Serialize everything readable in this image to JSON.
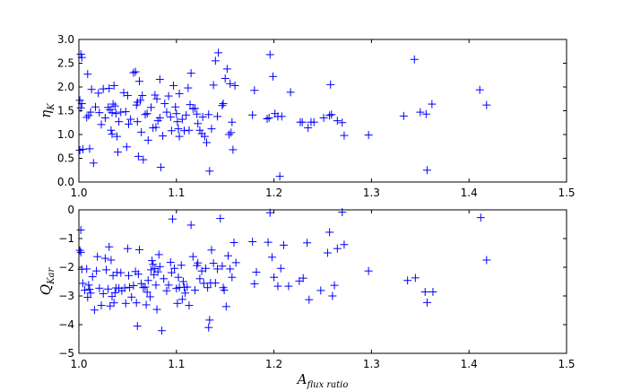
{
  "chart_data": [
    {
      "type": "scatter",
      "marker": "plus",
      "color": "#0000ff",
      "xlim": [
        1.0,
        1.5
      ],
      "ylim": [
        0.0,
        3.0
      ],
      "xticks": [
        "1.0",
        "1.1",
        "1.2",
        "1.3",
        "1.4",
        "1.5"
      ],
      "yticks": [
        "0.0",
        "0.5",
        "1.0",
        "1.5",
        "2.0",
        "2.5",
        "3.0"
      ],
      "ylabel": {
        "main": "η",
        "sub": "K"
      },
      "xlabel": null,
      "points": [
        [
          1.002,
          2.69
        ],
        [
          1.003,
          2.62
        ],
        [
          1.001,
          1.72
        ],
        [
          1.003,
          1.65
        ],
        [
          1.002,
          1.56
        ],
        [
          1.001,
          0.67
        ],
        [
          1.004,
          0.69
        ],
        [
          1.011,
          0.7
        ],
        [
          1.008,
          1.36
        ],
        [
          1.01,
          1.4
        ],
        [
          1.012,
          1.47
        ],
        [
          1.013,
          1.95
        ],
        [
          1.009,
          2.27
        ],
        [
          1.015,
          0.4
        ],
        [
          1.017,
          1.58
        ],
        [
          1.02,
          1.87
        ],
        [
          1.021,
          1.46
        ],
        [
          1.023,
          1.21
        ],
        [
          1.025,
          1.96
        ],
        [
          1.027,
          1.35
        ],
        [
          1.03,
          1.57
        ],
        [
          1.031,
          1.97
        ],
        [
          1.032,
          1.52
        ],
        [
          1.033,
          1.09
        ],
        [
          1.034,
          1.46
        ],
        [
          1.034,
          1.01
        ],
        [
          1.035,
          1.64
        ],
        [
          1.036,
          2.03
        ],
        [
          1.037,
          1.6
        ],
        [
          1.038,
          1.44
        ],
        [
          1.039,
          0.96
        ],
        [
          1.04,
          0.63
        ],
        [
          1.041,
          1.27
        ],
        [
          1.043,
          1.47
        ],
        [
          1.046,
          1.88
        ],
        [
          1.048,
          1.48
        ],
        [
          1.049,
          0.74
        ],
        [
          1.05,
          1.82
        ],
        [
          1.051,
          1.22
        ],
        [
          1.053,
          1.32
        ],
        [
          1.056,
          2.3
        ],
        [
          1.058,
          2.32
        ],
        [
          1.059,
          1.62
        ],
        [
          1.06,
          1.68
        ],
        [
          1.06,
          1.27
        ],
        [
          1.061,
          0.54
        ],
        [
          1.062,
          2.12
        ],
        [
          1.063,
          1.72
        ],
        [
          1.064,
          1.05
        ],
        [
          1.065,
          1.82
        ],
        [
          1.066,
          0.47
        ],
        [
          1.068,
          1.42
        ],
        [
          1.07,
          1.44
        ],
        [
          1.071,
          0.88
        ],
        [
          1.074,
          1.57
        ],
        [
          1.076,
          1.14
        ],
        [
          1.078,
          1.83
        ],
        [
          1.079,
          1.15
        ],
        [
          1.08,
          1.75
        ],
        [
          1.081,
          1.29
        ],
        [
          1.083,
          1.35
        ],
        [
          1.083,
          2.16
        ],
        [
          1.084,
          0.31
        ],
        [
          1.086,
          0.97
        ],
        [
          1.088,
          1.65
        ],
        [
          1.09,
          1.47
        ],
        [
          1.092,
          1.81
        ],
        [
          1.094,
          1.37
        ],
        [
          1.095,
          1.08
        ],
        [
          1.097,
          2.03
        ],
        [
          1.099,
          1.58
        ],
        [
          1.1,
          1.44
        ],
        [
          1.101,
          1.27
        ],
        [
          1.102,
          1.12
        ],
        [
          1.103,
          1.86
        ],
        [
          1.103,
          0.96
        ],
        [
          1.106,
          1.32
        ],
        [
          1.108,
          1.08
        ],
        [
          1.11,
          1.41
        ],
        [
          1.112,
          1.98
        ],
        [
          1.113,
          1.09
        ],
        [
          1.114,
          1.63
        ],
        [
          1.115,
          2.29
        ],
        [
          1.117,
          1.54
        ],
        [
          1.119,
          1.55
        ],
        [
          1.121,
          1.43
        ],
        [
          1.122,
          1.23
        ],
        [
          1.124,
          1.09
        ],
        [
          1.126,
          1.02
        ],
        [
          1.127,
          1.37
        ],
        [
          1.129,
          0.96
        ],
        [
          1.131,
          0.83
        ],
        [
          1.133,
          1.42
        ],
        [
          1.134,
          0.23
        ],
        [
          1.136,
          1.12
        ],
        [
          1.138,
          2.04
        ],
        [
          1.14,
          2.55
        ],
        [
          1.142,
          1.38
        ],
        [
          1.143,
          2.72
        ],
        [
          1.147,
          1.61
        ],
        [
          1.148,
          1.65
        ],
        [
          1.15,
          2.18
        ],
        [
          1.152,
          2.38
        ],
        [
          1.154,
          1.0
        ],
        [
          1.155,
          2.07
        ],
        [
          1.156,
          1.04
        ],
        [
          1.157,
          1.26
        ],
        [
          1.158,
          0.68
        ],
        [
          1.16,
          2.03
        ],
        [
          1.178,
          1.41
        ],
        [
          1.18,
          1.93
        ],
        [
          1.193,
          1.33
        ],
        [
          1.195,
          1.35
        ],
        [
          1.196,
          2.68
        ],
        [
          1.199,
          2.22
        ],
        [
          1.201,
          1.44
        ],
        [
          1.204,
          1.38
        ],
        [
          1.206,
          0.12
        ],
        [
          1.208,
          1.38
        ],
        [
          1.217,
          1.89
        ],
        [
          1.227,
          1.26
        ],
        [
          1.229,
          1.26
        ],
        [
          1.235,
          1.14
        ],
        [
          1.238,
          1.26
        ],
        [
          1.241,
          1.26
        ],
        [
          1.251,
          1.35
        ],
        [
          1.257,
          1.4
        ],
        [
          1.258,
          2.05
        ],
        [
          1.259,
          1.42
        ],
        [
          1.265,
          1.29
        ],
        [
          1.27,
          1.25
        ],
        [
          1.272,
          0.98
        ],
        [
          1.297,
          0.99
        ],
        [
          1.333,
          1.39
        ],
        [
          1.344,
          2.58
        ],
        [
          1.35,
          1.47
        ],
        [
          1.356,
          1.43
        ],
        [
          1.357,
          0.25
        ],
        [
          1.362,
          1.64
        ],
        [
          1.411,
          1.94
        ],
        [
          1.418,
          1.62
        ]
      ]
    },
    {
      "type": "scatter",
      "marker": "plus",
      "color": "#0000ff",
      "xlim": [
        1.0,
        1.5
      ],
      "ylim": [
        -5,
        0
      ],
      "xticks": [
        "1.0",
        "1.1",
        "1.2",
        "1.3",
        "1.4",
        "1.5"
      ],
      "yticks": [
        "0",
        "−1",
        "−2",
        "−3",
        "−4",
        "−5"
      ],
      "ylabel": {
        "main": "Q",
        "sub": "Kar"
      },
      "xlabel": {
        "main": "A",
        "sub": "flux ratio"
      },
      "points": [
        [
          1.002,
          -0.7
        ],
        [
          1.001,
          -1.41
        ],
        [
          1.002,
          -1.48
        ],
        [
          1.003,
          -2.07
        ],
        [
          1.004,
          -2.56
        ],
        [
          1.006,
          -2.8
        ],
        [
          1.008,
          -2.06
        ],
        [
          1.009,
          -3.05
        ],
        [
          1.01,
          -2.62
        ],
        [
          1.011,
          -2.77
        ],
        [
          1.012,
          -2.9
        ],
        [
          1.014,
          -2.33
        ],
        [
          1.016,
          -3.49
        ],
        [
          1.018,
          -2.13
        ],
        [
          1.019,
          -1.63
        ],
        [
          1.021,
          -2.73
        ],
        [
          1.023,
          -3.33
        ],
        [
          1.025,
          -2.92
        ],
        [
          1.027,
          -1.69
        ],
        [
          1.028,
          -2.09
        ],
        [
          1.03,
          -2.76
        ],
        [
          1.031,
          -1.29
        ],
        [
          1.032,
          -3.35
        ],
        [
          1.033,
          -1.75
        ],
        [
          1.034,
          -3.02
        ],
        [
          1.035,
          -2.29
        ],
        [
          1.036,
          -3.24
        ],
        [
          1.037,
          -2.89
        ],
        [
          1.038,
          -2.72
        ],
        [
          1.039,
          -2.18
        ],
        [
          1.041,
          -2.73
        ],
        [
          1.043,
          -2.19
        ],
        [
          1.044,
          -2.82
        ],
        [
          1.047,
          -2.72
        ],
        [
          1.048,
          -3.26
        ],
        [
          1.05,
          -1.35
        ],
        [
          1.051,
          -2.29
        ],
        [
          1.052,
          -2.7
        ],
        [
          1.054,
          -3.04
        ],
        [
          1.056,
          -2.64
        ],
        [
          1.058,
          -2.15
        ],
        [
          1.059,
          -3.24
        ],
        [
          1.06,
          -4.05
        ],
        [
          1.061,
          -2.24
        ],
        [
          1.062,
          -1.39
        ],
        [
          1.064,
          -2.57
        ],
        [
          1.066,
          -2.71
        ],
        [
          1.068,
          -2.69
        ],
        [
          1.069,
          -3.31
        ],
        [
          1.07,
          -2.87
        ],
        [
          1.071,
          -2.46
        ],
        [
          1.073,
          -3.03
        ],
        [
          1.074,
          -2.09
        ],
        [
          1.075,
          -1.77
        ],
        [
          1.076,
          -1.9
        ],
        [
          1.077,
          -2.26
        ],
        [
          1.078,
          -2.05
        ],
        [
          1.079,
          -2.62
        ],
        [
          1.08,
          -3.47
        ],
        [
          1.081,
          -2.16
        ],
        [
          1.082,
          -1.56
        ],
        [
          1.083,
          -1.98
        ],
        [
          1.085,
          -4.21
        ],
        [
          1.087,
          -2.4
        ],
        [
          1.09,
          -2.82
        ],
        [
          1.092,
          -2.62
        ],
        [
          1.094,
          -1.83
        ],
        [
          1.095,
          -2.19
        ],
        [
          1.096,
          -0.32
        ],
        [
          1.098,
          -2.04
        ],
        [
          1.1,
          -2.74
        ],
        [
          1.101,
          -3.26
        ],
        [
          1.102,
          -2.35
        ],
        [
          1.103,
          -2.7
        ],
        [
          1.105,
          -1.93
        ],
        [
          1.106,
          -3.12
        ],
        [
          1.107,
          -2.5
        ],
        [
          1.108,
          -2.7
        ],
        [
          1.109,
          -2.9
        ],
        [
          1.111,
          -2.69
        ],
        [
          1.113,
          -3.33
        ],
        [
          1.115,
          -0.53
        ],
        [
          1.117,
          -1.63
        ],
        [
          1.119,
          -2.8
        ],
        [
          1.121,
          -1.94
        ],
        [
          1.122,
          -1.85
        ],
        [
          1.124,
          -2.4
        ],
        [
          1.126,
          -2.13
        ],
        [
          1.128,
          -2.56
        ],
        [
          1.13,
          -2.04
        ],
        [
          1.132,
          -2.71
        ],
        [
          1.133,
          -4.1
        ],
        [
          1.134,
          -3.84
        ],
        [
          1.135,
          -2.55
        ],
        [
          1.136,
          -1.4
        ],
        [
          1.138,
          -1.86
        ],
        [
          1.14,
          -2.55
        ],
        [
          1.142,
          -2.06
        ],
        [
          1.145,
          -0.3
        ],
        [
          1.147,
          -1.96
        ],
        [
          1.148,
          -2.71
        ],
        [
          1.149,
          -2.8
        ],
        [
          1.151,
          -3.37
        ],
        [
          1.153,
          -1.6
        ],
        [
          1.155,
          -2.06
        ],
        [
          1.157,
          -2.35
        ],
        [
          1.159,
          -1.14
        ],
        [
          1.161,
          -1.84
        ],
        [
          1.178,
          -1.11
        ],
        [
          1.18,
          -2.58
        ],
        [
          1.182,
          -2.17
        ],
        [
          1.194,
          -1.13
        ],
        [
          1.196,
          -0.1
        ],
        [
          1.198,
          -1.65
        ],
        [
          1.2,
          -2.35
        ],
        [
          1.204,
          -2.66
        ],
        [
          1.207,
          -2.04
        ],
        [
          1.21,
          -1.23
        ],
        [
          1.215,
          -2.66
        ],
        [
          1.226,
          -2.48
        ],
        [
          1.23,
          -2.38
        ],
        [
          1.234,
          -1.15
        ],
        [
          1.236,
          -3.13
        ],
        [
          1.248,
          -2.81
        ],
        [
          1.255,
          -1.5
        ],
        [
          1.257,
          -0.78
        ],
        [
          1.26,
          -3.0
        ],
        [
          1.262,
          -2.63
        ],
        [
          1.265,
          -1.35
        ],
        [
          1.27,
          -0.08
        ],
        [
          1.272,
          -1.21
        ],
        [
          1.297,
          -2.13
        ],
        [
          1.337,
          -2.46
        ],
        [
          1.345,
          -2.37
        ],
        [
          1.355,
          -2.86
        ],
        [
          1.357,
          -3.23
        ],
        [
          1.363,
          -2.86
        ],
        [
          1.412,
          -0.27
        ],
        [
          1.418,
          -1.75
        ]
      ]
    }
  ]
}
